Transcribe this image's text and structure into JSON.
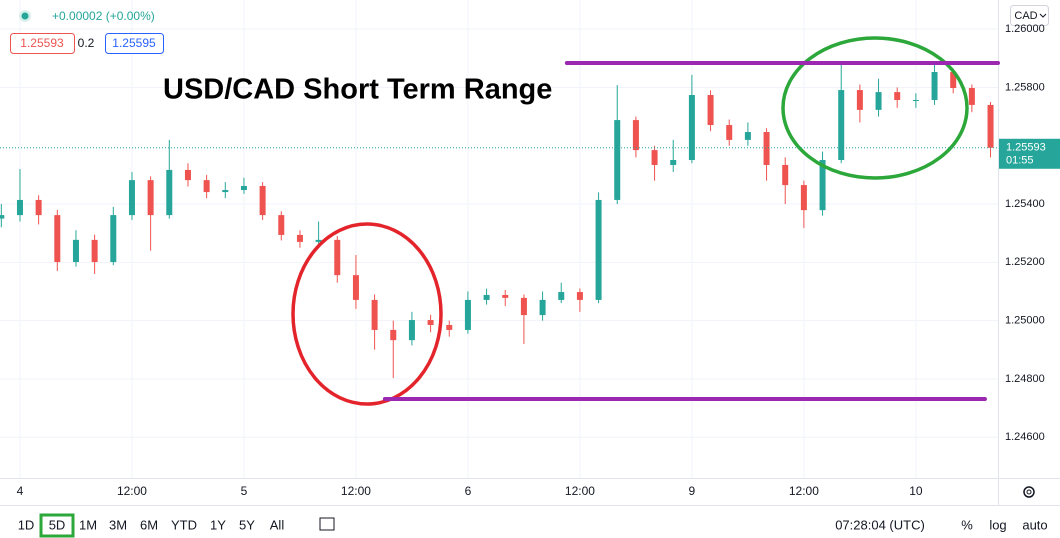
{
  "header": {
    "change": "+0.00002 (+0.00%)",
    "bid": "1.25593",
    "spread": "0.2",
    "ask": "1.25595",
    "currency": "CAD"
  },
  "chart_data": {
    "type": "candlestick",
    "title": "USD/CAD Short Term Range",
    "x": [
      -2,
      0,
      2,
      4,
      6,
      8,
      10,
      12,
      14,
      16,
      18,
      20,
      22,
      24,
      26,
      28,
      30,
      32,
      34,
      36,
      38,
      40,
      42,
      44,
      46,
      48,
      50,
      52,
      54,
      56,
      58,
      60,
      62,
      64,
      66,
      68,
      70,
      72,
      74,
      76,
      78,
      80,
      82,
      84,
      86,
      88,
      90,
      92,
      94,
      96,
      98,
      100,
      102,
      104
    ],
    "open": [
      1.2535,
      1.25362,
      1.25414,
      1.25362,
      1.25201,
      1.25277,
      1.25201,
      1.25362,
      1.25482,
      1.25362,
      1.25517,
      1.25482,
      1.25441,
      1.25448,
      1.25462,
      1.25362,
      1.25294,
      1.2527,
      1.25277,
      1.25156,
      1.25071,
      1.24968,
      1.24933,
      1.25002,
      1.24985,
      1.24968,
      1.25071,
      1.25088,
      1.25078,
      1.25019,
      1.25071,
      1.25098,
      1.25071,
      1.25414,
      1.25688,
      1.25585,
      1.25534,
      1.25551,
      1.25774,
      1.25671,
      1.2562,
      1.25647,
      1.25534,
      1.25465,
      1.25379,
      1.25551,
      1.25791,
      1.25723,
      1.25784,
      1.25757,
      1.25757,
      1.25853,
      1.25798,
      1.2574
    ],
    "high": [
      1.254,
      1.2552,
      1.2543,
      1.2538,
      1.2531,
      1.25295,
      1.2539,
      1.2551,
      1.25495,
      1.2562,
      1.2554,
      1.255,
      1.25475,
      1.2549,
      1.25475,
      1.25375,
      1.2531,
      1.2534,
      1.2529,
      1.25225,
      1.2509,
      1.25,
      1.2503,
      1.2502,
      1.25,
      1.251,
      1.2511,
      1.25105,
      1.2509,
      1.251,
      1.2513,
      1.2511,
      1.2544,
      1.25808,
      1.257,
      1.256,
      1.2562,
      1.25843,
      1.2579,
      1.2569,
      1.2568,
      1.2566,
      1.2556,
      1.2548,
      1.2558,
      1.25877,
      1.2581,
      1.2583,
      1.258,
      1.2578,
      1.25877,
      1.25865,
      1.2581,
      1.2575
    ],
    "low": [
      1.2532,
      1.2534,
      1.2533,
      1.2517,
      1.25185,
      1.2516,
      1.2519,
      1.25345,
      1.2524,
      1.2535,
      1.2546,
      1.2542,
      1.2542,
      1.25435,
      1.25345,
      1.25275,
      1.2525,
      1.2525,
      1.2513,
      1.2504,
      1.249,
      1.24803,
      1.24915,
      1.2496,
      1.24945,
      1.24955,
      1.25055,
      1.2505,
      1.2492,
      1.25,
      1.2506,
      1.2503,
      1.2506,
      1.254,
      1.2556,
      1.2548,
      1.2551,
      1.2554,
      1.2565,
      1.256,
      1.256,
      1.2548,
      1.254,
      1.25318,
      1.2536,
      1.2554,
      1.2568,
      1.257,
      1.2573,
      1.2573,
      1.2574,
      1.2578,
      1.25715,
      1.2556
    ],
    "close": [
      1.25362,
      1.25414,
      1.25362,
      1.25201,
      1.25277,
      1.25201,
      1.25362,
      1.25482,
      1.25362,
      1.25517,
      1.25482,
      1.25441,
      1.25448,
      1.25462,
      1.25362,
      1.25294,
      1.2527,
      1.25277,
      1.25156,
      1.25071,
      1.24968,
      1.24933,
      1.25002,
      1.24985,
      1.24968,
      1.25071,
      1.25088,
      1.25078,
      1.25019,
      1.25071,
      1.25098,
      1.25071,
      1.25414,
      1.25688,
      1.25585,
      1.25534,
      1.25551,
      1.25774,
      1.25671,
      1.2562,
      1.25647,
      1.25534,
      1.25465,
      1.25379,
      1.25551,
      1.25791,
      1.25723,
      1.25784,
      1.25757,
      1.25757,
      1.25853,
      1.25798,
      1.2574,
      1.25593
    ],
    "up_color": "#26a69a",
    "down_color": "#ef5350",
    "xlim": [
      -2.14,
      104.8
    ],
    "xticks": [
      {
        "value": 0,
        "label": "4"
      },
      {
        "value": 12,
        "label": "12:00"
      },
      {
        "value": 24,
        "label": "5"
      },
      {
        "value": 36,
        "label": "12:00"
      },
      {
        "value": 48,
        "label": "6"
      },
      {
        "value": 60,
        "label": "12:00"
      },
      {
        "value": 72,
        "label": "9"
      },
      {
        "value": 84,
        "label": "12:00"
      },
      {
        "value": 96,
        "label": "10"
      }
    ],
    "ylim": [
      1.2446,
      1.261
    ],
    "yticks": [
      {
        "value": 1.246,
        "label": "1.24600"
      },
      {
        "value": 1.248,
        "label": "1.24800"
      },
      {
        "value": 1.25,
        "label": "1.25000"
      },
      {
        "value": 1.252,
        "label": "1.25200"
      },
      {
        "value": 1.254,
        "label": "1.25400"
      },
      {
        "value": 1.258,
        "label": "1.25800"
      },
      {
        "value": 1.26,
        "label": "1.26000"
      }
    ],
    "grid": true,
    "last_price": 1.25593,
    "countdown": "01:55",
    "levels": [
      {
        "value": 1.25884,
        "from": 58.6,
        "to": 104.8,
        "color": "#9c27b0"
      },
      {
        "value": 1.24731,
        "from": 39.1,
        "to": 103.4,
        "color": "#9c27b0"
      }
    ]
  },
  "toolbar": {
    "ranges": [
      "1D",
      "5D",
      "1M",
      "3M",
      "6M",
      "YTD",
      "1Y",
      "5Y",
      "All"
    ],
    "selected": 1,
    "time": "07:28:04 (UTC)",
    "percent": "%",
    "log": "log",
    "auto": "auto"
  }
}
